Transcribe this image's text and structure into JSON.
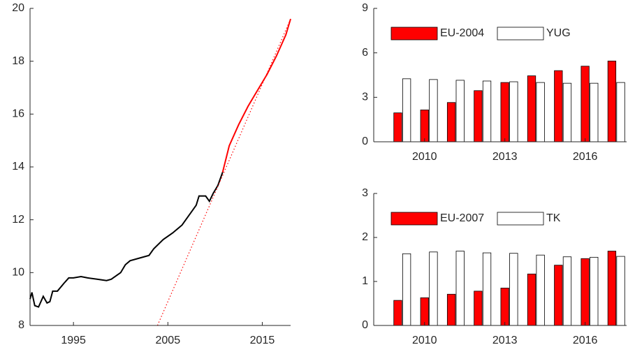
{
  "chart_data": [
    {
      "type": "line",
      "xlim": [
        1990.4,
        2018
      ],
      "ylim": [
        8,
        20
      ],
      "xticks": [
        1995,
        2005,
        2015
      ],
      "yticks": [
        8,
        10,
        12,
        14,
        16,
        18,
        20
      ],
      "series": [
        {
          "color": "#000000",
          "linestyle": "solid",
          "x": [
            1990.4,
            1990.6,
            1990.9,
            1991.3,
            1991.8,
            1992.2,
            1992.5,
            1992.8,
            1993.3,
            1994,
            1994.5,
            1995,
            1995.8,
            1996.5,
            1997.5,
            1998.5,
            1999,
            2000,
            2000.5,
            2001,
            2002,
            2003,
            2003.5,
            2004.5,
            2005.5,
            2006.5,
            2007.5,
            2008,
            2008.3,
            2009,
            2009.4,
            2009.8,
            2010.3,
            2010.8
          ],
          "values": [
            9.0,
            9.25,
            8.75,
            8.7,
            9.1,
            8.85,
            8.9,
            9.3,
            9.3,
            9.6,
            9.8,
            9.8,
            9.85,
            9.8,
            9.75,
            9.7,
            9.75,
            10.0,
            10.3,
            10.45,
            10.55,
            10.65,
            10.9,
            11.25,
            11.5,
            11.8,
            12.3,
            12.55,
            12.9,
            12.9,
            12.7,
            13.0,
            13.3,
            13.8
          ]
        },
        {
          "color": "#ff0000",
          "linestyle": "solid",
          "x": [
            2010.8,
            2011.5,
            2012.5,
            2013.5,
            2014.5,
            2015.5,
            2016.5,
            2017.5,
            2018
          ],
          "values": [
            13.8,
            14.8,
            15.6,
            16.3,
            16.9,
            17.5,
            18.2,
            19.0,
            19.6
          ]
        },
        {
          "color": "#ff0000",
          "linestyle": "dotted",
          "x": [
            2003.9,
            2018
          ],
          "values": [
            8,
            19.6
          ]
        }
      ]
    },
    {
      "type": "bar",
      "x": [
        2009,
        2010,
        2011,
        2012,
        2013,
        2014,
        2015,
        2016,
        2017
      ],
      "xlim": [
        2008.1,
        2017.55
      ],
      "ylim": [
        0,
        9
      ],
      "xticks": [
        2010,
        2013,
        2016
      ],
      "yticks": [
        0,
        3,
        6,
        9
      ],
      "legend": "upper left",
      "series": [
        {
          "name": "EU-2004",
          "color": "#ff0000",
          "values": [
            1.95,
            2.15,
            2.65,
            3.45,
            4.0,
            4.45,
            4.8,
            5.1,
            5.45
          ]
        },
        {
          "name": "YUG",
          "color": "#ffffff",
          "values": [
            4.25,
            4.2,
            4.15,
            4.1,
            4.05,
            4.0,
            3.95,
            3.95,
            4.0
          ]
        }
      ]
    },
    {
      "type": "bar",
      "x": [
        2009,
        2010,
        2011,
        2012,
        2013,
        2014,
        2015,
        2016,
        2017
      ],
      "xlim": [
        2008.1,
        2017.55
      ],
      "ylim": [
        0,
        3
      ],
      "xticks": [
        2010,
        2013,
        2016
      ],
      "yticks": [
        0,
        1,
        2,
        3
      ],
      "legend": "upper left",
      "series": [
        {
          "name": "EU-2007",
          "color": "#ff0000",
          "values": [
            0.57,
            0.63,
            0.71,
            0.78,
            0.85,
            1.17,
            1.37,
            1.52,
            1.69
          ]
        },
        {
          "name": "TK",
          "color": "#ffffff",
          "values": [
            1.63,
            1.67,
            1.69,
            1.65,
            1.64,
            1.6,
            1.56,
            1.55,
            1.57
          ]
        }
      ]
    }
  ]
}
